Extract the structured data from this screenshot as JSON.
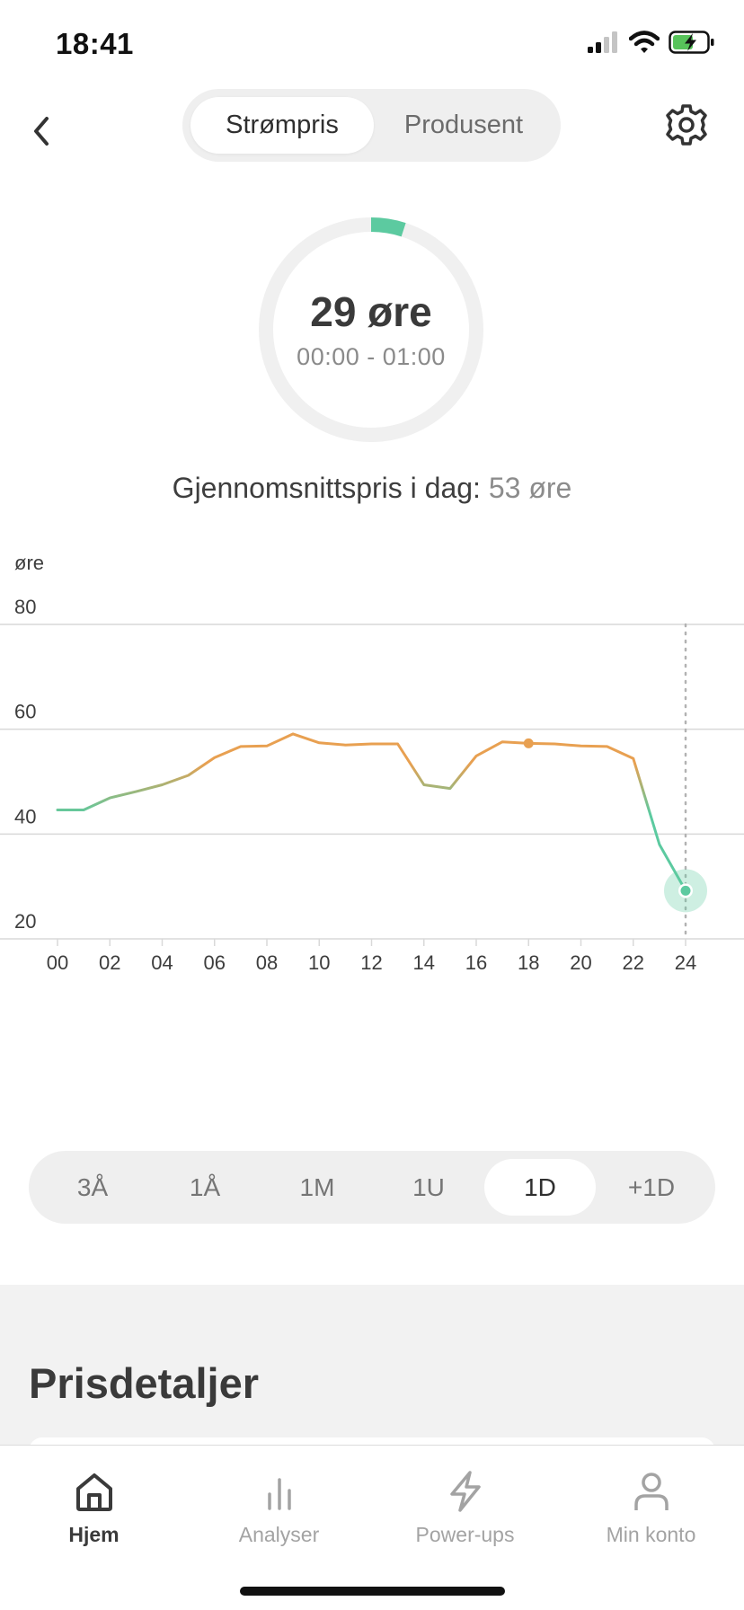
{
  "status_bar": {
    "time": "18:41",
    "icons": [
      "cellular-signal-icon",
      "wifi-icon",
      "battery-charging-icon"
    ]
  },
  "nav": {
    "back_icon": "chevron-left-icon",
    "tabs": [
      {
        "label": "Strømpris",
        "active": true
      },
      {
        "label": "Produsent",
        "active": false
      }
    ],
    "settings_icon": "gear-icon"
  },
  "current_price": {
    "value": "29 øre",
    "time_range": "00:00 - 01:00",
    "gauge_fraction": 0.05,
    "accent_color": "#5ccaa0"
  },
  "average": {
    "label": "Gjennomsnittspris i dag:",
    "value": "53 øre"
  },
  "chart_data": {
    "type": "line",
    "ylabel": "øre",
    "ylim": [
      20,
      80
    ],
    "yticks": [
      "80",
      "60",
      "40",
      "20"
    ],
    "xlim": [
      0,
      24
    ],
    "xticks": [
      "00",
      "02",
      "04",
      "06",
      "08",
      "10",
      "12",
      "14",
      "16",
      "18",
      "20",
      "22",
      "24"
    ],
    "grid": true,
    "series": [
      {
        "x": [
          0,
          1,
          2,
          3,
          4,
          5,
          6,
          7,
          8,
          9,
          10,
          11,
          12,
          13,
          14,
          15,
          16,
          17,
          18,
          19,
          20,
          21,
          22,
          23,
          24
        ],
        "values": [
          44.6,
          44.6,
          46.9,
          48.1,
          49.4,
          51.2,
          54.6,
          56.7,
          56.8,
          59.1,
          57.4,
          57.0,
          57.2,
          57.2,
          49.4,
          48.7,
          54.9,
          57.6,
          57.3,
          57.2,
          56.8,
          56.7,
          54.4,
          38.0,
          29.2
        ]
      }
    ],
    "markers": [
      {
        "x": 18,
        "y": 57.3,
        "style": "small-dot"
      },
      {
        "x": 24,
        "y": 29.2,
        "style": "highlight"
      }
    ],
    "vertical_guide_x": 24,
    "colors": {
      "low": "#5ccaa0",
      "high": "#e8a051",
      "grid": "#d9d9d9"
    }
  },
  "periods": [
    {
      "label": "3Å",
      "active": false
    },
    {
      "label": "1Å",
      "active": false
    },
    {
      "label": "1M",
      "active": false
    },
    {
      "label": "1U",
      "active": false
    },
    {
      "label": "1D",
      "active": true
    },
    {
      "label": "+1D",
      "active": false
    }
  ],
  "details": {
    "title": "Prisdetaljer"
  },
  "tab_bar": {
    "items": [
      {
        "label": "Hjem",
        "icon": "home-icon",
        "active": true
      },
      {
        "label": "Analyser",
        "icon": "bar-chart-icon",
        "active": false
      },
      {
        "label": "Power-ups",
        "icon": "lightning-icon",
        "active": false
      },
      {
        "label": "Min konto",
        "icon": "user-icon",
        "active": false
      }
    ]
  }
}
